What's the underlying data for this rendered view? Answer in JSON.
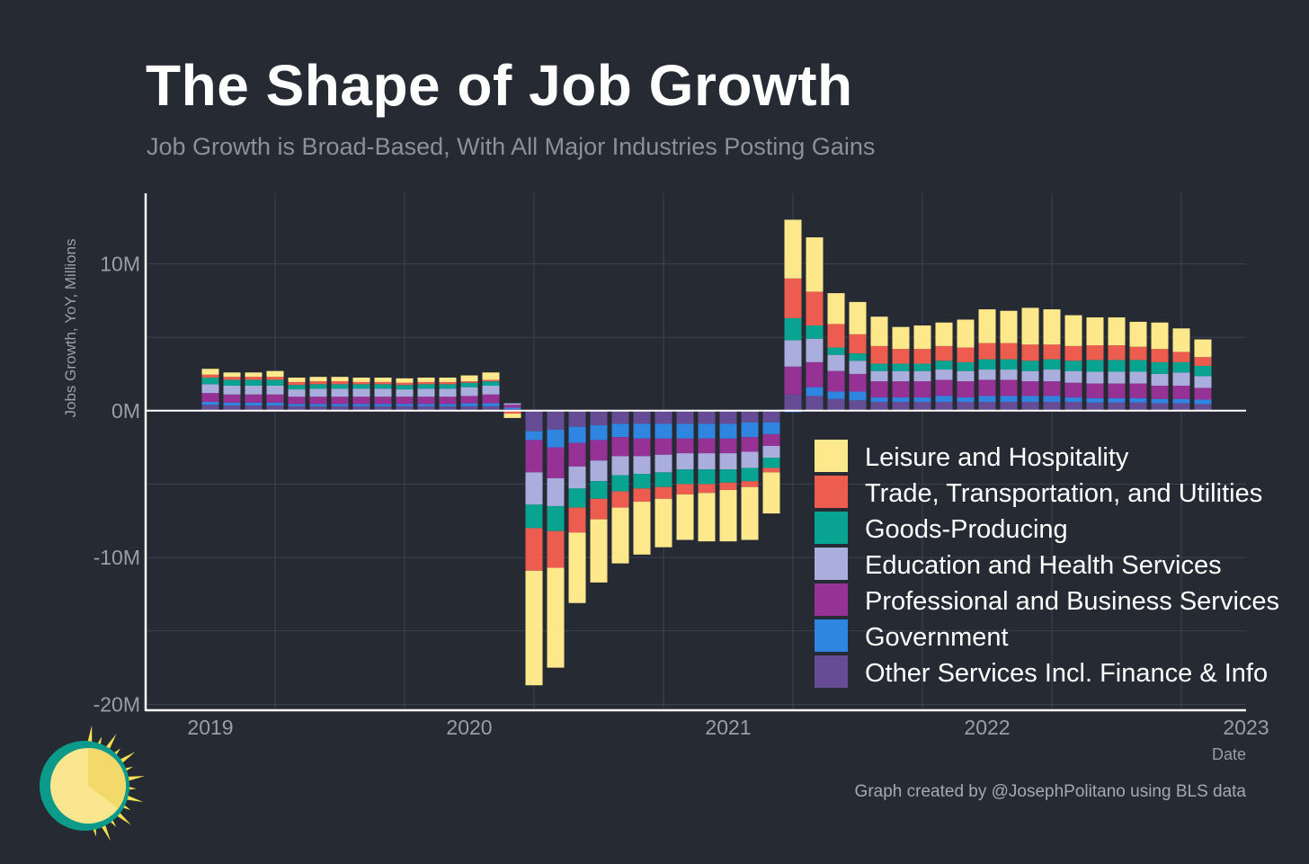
{
  "title": "The Shape of Job Growth",
  "subtitle": "Job Growth is Broad-Based, With All Major Industries Posting Gains",
  "credit": "Graph created by @JosephPolitano using BLS data",
  "chart_data": {
    "type": "bar",
    "stacked": true,
    "ylabel": "Jobs Growth, YoY, Millions",
    "xlabel": "Date",
    "ylim": [
      -20.4,
      14.8
    ],
    "xlim": [
      "2018-10",
      "2023-01"
    ],
    "yticks": [
      -20,
      -10,
      0,
      10
    ],
    "ytick_labels": [
      "-20M",
      "-10M",
      "0M",
      "10M"
    ],
    "xticks": [
      "2019-01",
      "2020-01",
      "2021-01",
      "2022-01",
      "2023-01"
    ],
    "xtick_labels": [
      "2019",
      "2020",
      "2021",
      "2022",
      "2023"
    ],
    "grid": true,
    "legend_position": "bottom-right",
    "x": [
      "2019-01",
      "2019-02",
      "2019-03",
      "2019-04",
      "2019-05",
      "2019-06",
      "2019-07",
      "2019-08",
      "2019-09",
      "2019-10",
      "2019-11",
      "2019-12",
      "2020-01",
      "2020-02",
      "2020-03",
      "2020-04",
      "2020-05",
      "2020-06",
      "2020-07",
      "2020-08",
      "2020-09",
      "2020-10",
      "2020-11",
      "2020-12",
      "2021-01",
      "2021-02",
      "2021-03",
      "2021-04",
      "2021-05",
      "2021-06",
      "2021-07",
      "2021-08",
      "2021-09",
      "2021-10",
      "2021-11",
      "2021-12",
      "2022-01",
      "2022-02",
      "2022-03",
      "2022-04",
      "2022-05",
      "2022-06",
      "2022-07",
      "2022-08",
      "2022-09",
      "2022-10",
      "2022-11"
    ],
    "series": [
      {
        "name": "Other Services Incl. Finance & Info",
        "color": "#664c94",
        "values": [
          0.4,
          0.35,
          0.35,
          0.35,
          0.3,
          0.3,
          0.3,
          0.3,
          0.3,
          0.3,
          0.3,
          0.3,
          0.3,
          0.3,
          0.1,
          -1.4,
          -1.3,
          -1.1,
          -1.0,
          -0.9,
          -0.9,
          -0.9,
          -0.9,
          -0.9,
          -0.9,
          -0.8,
          -0.8,
          1.1,
          1.0,
          0.8,
          0.7,
          0.6,
          0.6,
          0.6,
          0.6,
          0.6,
          0.6,
          0.6,
          0.6,
          0.6,
          0.6,
          0.55,
          0.55,
          0.55,
          0.5,
          0.5,
          0.45
        ]
      },
      {
        "name": "Government",
        "color": "#2f86e0",
        "values": [
          0.2,
          0.2,
          0.2,
          0.2,
          0.15,
          0.15,
          0.15,
          0.15,
          0.15,
          0.15,
          0.15,
          0.15,
          0.2,
          0.2,
          0.1,
          -0.6,
          -1.2,
          -1.1,
          -1.0,
          -0.9,
          -1.0,
          -1.0,
          -1.0,
          -1.0,
          -1.0,
          -1.0,
          -0.8,
          -0.1,
          0.6,
          0.5,
          0.6,
          0.3,
          0.3,
          0.3,
          0.4,
          0.3,
          0.4,
          0.4,
          0.4,
          0.4,
          0.3,
          0.3,
          0.3,
          0.3,
          0.3,
          0.3,
          0.3
        ]
      },
      {
        "name": "Professional and Business Services",
        "color": "#963296",
        "values": [
          0.6,
          0.55,
          0.55,
          0.55,
          0.5,
          0.5,
          0.5,
          0.5,
          0.5,
          0.5,
          0.5,
          0.5,
          0.5,
          0.6,
          0.2,
          -2.2,
          -2.1,
          -1.6,
          -1.4,
          -1.3,
          -1.2,
          -1.1,
          -1.0,
          -1.0,
          -1.0,
          -1.0,
          -0.8,
          1.9,
          1.7,
          1.4,
          1.2,
          1.1,
          1.1,
          1.1,
          1.1,
          1.1,
          1.1,
          1.1,
          1.0,
          1.0,
          1.0,
          1.0,
          1.0,
          1.0,
          0.9,
          0.9,
          0.8
        ]
      },
      {
        "name": "Education and Health Services",
        "color": "#a9aedc",
        "values": [
          0.6,
          0.6,
          0.6,
          0.6,
          0.5,
          0.55,
          0.55,
          0.55,
          0.55,
          0.5,
          0.55,
          0.55,
          0.6,
          0.6,
          0.1,
          -2.2,
          -1.9,
          -1.5,
          -1.4,
          -1.3,
          -1.2,
          -1.2,
          -1.1,
          -1.1,
          -1.1,
          -1.1,
          -0.8,
          1.8,
          1.6,
          1.1,
          0.9,
          0.7,
          0.7,
          0.7,
          0.7,
          0.7,
          0.7,
          0.7,
          0.7,
          0.8,
          0.8,
          0.8,
          0.8,
          0.8,
          0.8,
          0.9,
          0.8
        ]
      },
      {
        "name": "Goods-Producing",
        "color": "#09a391",
        "values": [
          0.45,
          0.4,
          0.4,
          0.4,
          0.3,
          0.3,
          0.3,
          0.3,
          0.3,
          0.3,
          0.3,
          0.3,
          0.3,
          0.3,
          0.0,
          -1.6,
          -1.7,
          -1.3,
          -1.2,
          -1.1,
          -1.0,
          -1.0,
          -1.0,
          -1.0,
          -0.9,
          -0.9,
          -0.7,
          1.5,
          0.9,
          0.5,
          0.5,
          0.5,
          0.5,
          0.5,
          0.6,
          0.6,
          0.7,
          0.7,
          0.7,
          0.7,
          0.7,
          0.8,
          0.8,
          0.8,
          0.8,
          0.7,
          0.7
        ]
      },
      {
        "name": "Trade, Transportation, and Utilities",
        "color": "#ec5c4f",
        "values": [
          0.2,
          0.2,
          0.2,
          0.2,
          0.2,
          0.2,
          0.2,
          0.15,
          0.15,
          0.15,
          0.15,
          0.15,
          0.1,
          0.1,
          -0.2,
          -2.9,
          -2.5,
          -1.7,
          -1.4,
          -1.1,
          -0.9,
          -0.8,
          -0.7,
          -0.6,
          -0.5,
          -0.4,
          -0.3,
          2.7,
          2.3,
          1.6,
          1.3,
          1.2,
          1.0,
          1.0,
          1.0,
          1.0,
          1.1,
          1.1,
          1.1,
          1.0,
          1.0,
          1.0,
          1.0,
          0.9,
          0.9,
          0.7,
          0.6
        ]
      },
      {
        "name": "Leisure and Hospitality",
        "color": "#fde88b",
        "values": [
          0.4,
          0.3,
          0.3,
          0.4,
          0.3,
          0.3,
          0.3,
          0.3,
          0.3,
          0.3,
          0.3,
          0.3,
          0.4,
          0.5,
          -0.3,
          -7.8,
          -6.8,
          -4.8,
          -4.3,
          -3.8,
          -3.6,
          -3.3,
          -3.1,
          -3.3,
          -3.5,
          -3.6,
          -2.8,
          4.0,
          3.7,
          2.1,
          2.2,
          2.0,
          1.5,
          1.6,
          1.6,
          1.9,
          2.3,
          2.2,
          2.5,
          2.4,
          2.1,
          1.9,
          1.9,
          1.7,
          1.8,
          1.6,
          1.2
        ]
      }
    ]
  },
  "legend_order": [
    "Leisure and Hospitality",
    "Trade, Transportation, and Utilities",
    "Goods-Producing",
    "Education and Health Services",
    "Professional and Business Services",
    "Government",
    "Other Services Incl. Finance & Info"
  ],
  "colors": {
    "background": "#252a33",
    "axis": "#ffffff",
    "grid": "#3c4250",
    "tick_text": "#9a9ea6"
  }
}
